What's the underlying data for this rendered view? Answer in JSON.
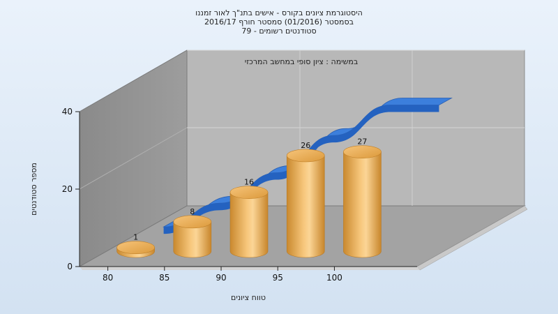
{
  "chart_data": {
    "type": "bar",
    "title_lines": [
      "היסטוגרמת ציונים בקורס - אישים בתנ\"ך לאור זמננו",
      "בסמסטר (01/2016) סמסטר חורף 2016/17",
      "סטודנטים רשומים - 79"
    ],
    "annotation": "במשימה : ציון סופי במחשב המרכזי",
    "xlabel": "טווח ציונים",
    "ylabel": "מספר סטודנטים",
    "x_ticks": [
      "80",
      "85",
      "90",
      "95",
      "100"
    ],
    "y_ticks": [
      0,
      20,
      40
    ],
    "ylim": [
      0,
      40
    ],
    "grid": true,
    "categories": [
      "80",
      "85",
      "90",
      "95",
      "100"
    ],
    "series": [
      {
        "values": [
          1,
          8,
          16,
          26,
          27
        ],
        "style": "cylinder",
        "color": "#e8a33c"
      },
      {
        "values": [
          1,
          8,
          17,
          28,
          37
        ],
        "style": "ribbon",
        "color": "#2f6fcf"
      }
    ]
  }
}
